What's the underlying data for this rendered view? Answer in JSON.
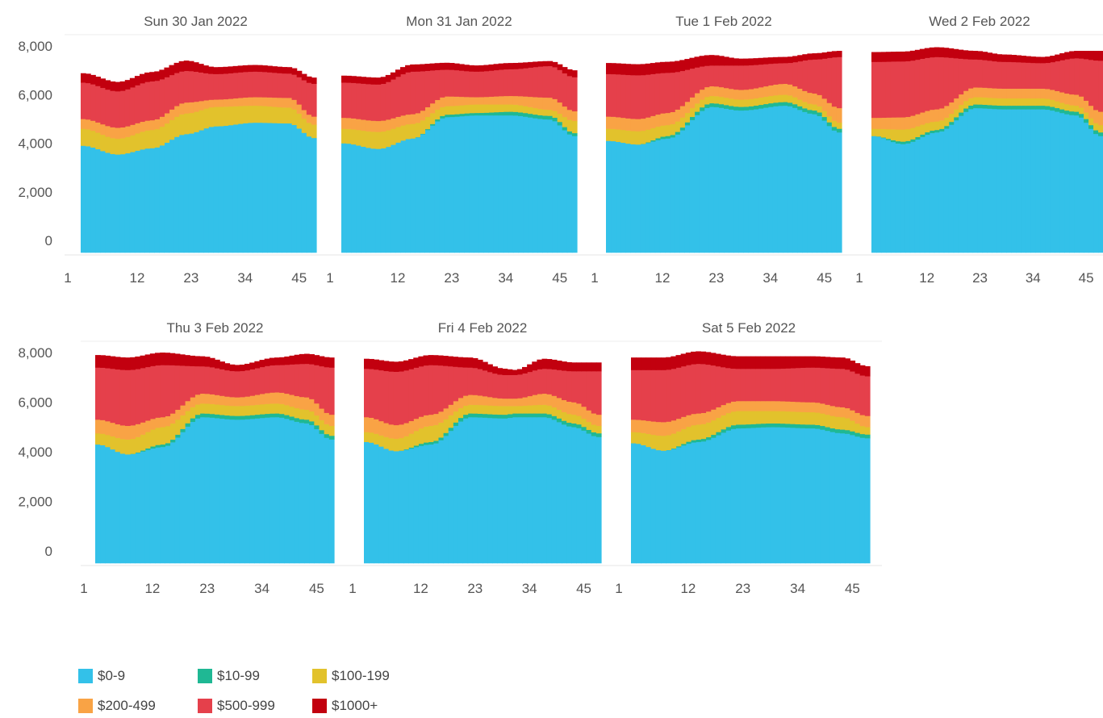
{
  "chart_data": {
    "type": "area",
    "stacked": true,
    "x": [
      1,
      2,
      3,
      4,
      5,
      6,
      7,
      8,
      9,
      10,
      11,
      12,
      13,
      14,
      15,
      16,
      17,
      18,
      19,
      20,
      21,
      22,
      23,
      24,
      25,
      26,
      27,
      28,
      29,
      30,
      31,
      32,
      33,
      34,
      35,
      36,
      37,
      38,
      39,
      40,
      41,
      42,
      43,
      44,
      45,
      46,
      47,
      48
    ],
    "xticks": [
      1,
      12,
      23,
      34,
      45
    ],
    "yticks": [
      "0",
      "2,000",
      "4,000",
      "6,000",
      "8,000"
    ],
    "ylim": [
      0,
      8000
    ],
    "grid": false,
    "legend_position": "bottom-left",
    "categories": [
      "$0-9",
      "$10-99",
      "$100-199",
      "$200-499",
      "$500-999",
      "$1000+"
    ],
    "colors": [
      "#33c1e9",
      "#1fb894",
      "#e2c22c",
      "#f9a345",
      "#e5404b",
      "#c2000f"
    ],
    "panels": [
      {
        "title": "Sun 30 Jan 2022",
        "keys": [
          [
            1,
            3900,
            0,
            700,
            400,
            1500,
            380
          ],
          [
            8,
            3540,
            0,
            650,
            450,
            1500,
            380
          ],
          [
            15,
            3800,
            0,
            750,
            400,
            1600,
            380
          ],
          [
            22,
            4380,
            0,
            850,
            450,
            1300,
            420
          ],
          [
            28,
            4700,
            0,
            800,
            300,
            1050,
            280
          ],
          [
            36,
            4850,
            0,
            700,
            350,
            1050,
            270
          ],
          [
            43,
            4820,
            0,
            650,
            400,
            1000,
            260
          ],
          [
            48,
            4220,
            0,
            550,
            330,
            1350,
            250
          ]
        ]
      },
      {
        "title": "Mon 31 Jan 2022",
        "keys": [
          [
            1,
            4000,
            0,
            600,
            450,
            1450,
            280
          ],
          [
            8,
            3770,
            0,
            700,
            450,
            1500,
            280
          ],
          [
            15,
            4200,
            0,
            600,
            400,
            1750,
            290
          ],
          [
            22,
            5080,
            100,
            350,
            400,
            1100,
            280
          ],
          [
            28,
            5150,
            100,
            350,
            300,
            1050,
            250
          ],
          [
            35,
            5150,
            150,
            300,
            350,
            1100,
            250
          ],
          [
            43,
            4980,
            150,
            250,
            500,
            1300,
            200
          ],
          [
            48,
            4300,
            120,
            500,
            400,
            1400,
            280
          ]
        ]
      },
      {
        "title": "Tue 1 Feb 2022",
        "keys": [
          [
            1,
            4100,
            0,
            500,
            500,
            1750,
            450
          ],
          [
            7,
            3950,
            0,
            550,
            500,
            1800,
            450
          ],
          [
            13,
            4200,
            100,
            450,
            500,
            1650,
            450
          ],
          [
            22,
            5500,
            150,
            300,
            400,
            850,
            430
          ],
          [
            28,
            5350,
            150,
            300,
            400,
            1000,
            280
          ],
          [
            37,
            5550,
            150,
            300,
            450,
            850,
            250
          ],
          [
            43,
            5200,
            150,
            250,
            450,
            1400,
            250
          ],
          [
            48,
            4450,
            150,
            250,
            600,
            2100,
            250
          ]
        ]
      },
      {
        "title": "Wed 2 Feb 2022",
        "keys": [
          [
            1,
            4300,
            0,
            300,
            450,
            2300,
            400
          ],
          [
            7,
            3970,
            100,
            500,
            500,
            2300,
            400
          ],
          [
            14,
            4450,
            100,
            350,
            500,
            2150,
            400
          ],
          [
            22,
            5450,
            150,
            300,
            400,
            1150,
            350
          ],
          [
            28,
            5400,
            150,
            300,
            400,
            1100,
            300
          ],
          [
            36,
            5400,
            150,
            300,
            400,
            1050,
            250
          ],
          [
            43,
            5150,
            150,
            250,
            450,
            1500,
            300
          ],
          [
            48,
            4300,
            150,
            300,
            550,
            2100,
            400
          ]
        ]
      },
      {
        "title": "Thu 3 Feb 2022",
        "keys": [
          [
            1,
            4300,
            0,
            450,
            550,
            2100,
            500
          ],
          [
            7,
            3900,
            0,
            600,
            550,
            2250,
            500
          ],
          [
            14,
            4200,
            100,
            700,
            400,
            2100,
            500
          ],
          [
            22,
            5400,
            150,
            400,
            400,
            1100,
            400
          ],
          [
            29,
            5300,
            150,
            400,
            350,
            1050,
            250
          ],
          [
            37,
            5400,
            150,
            400,
            450,
            1100,
            300
          ],
          [
            43,
            5150,
            150,
            400,
            500,
            1350,
            400
          ],
          [
            48,
            4500,
            150,
            400,
            450,
            1900,
            400
          ]
        ]
      },
      {
        "title": "Fri 4 Feb 2022",
        "keys": [
          [
            1,
            4400,
            0,
            400,
            600,
            1950,
            400
          ],
          [
            7,
            4030,
            0,
            500,
            550,
            2150,
            400
          ],
          [
            14,
            4300,
            100,
            650,
            450,
            2000,
            400
          ],
          [
            22,
            5400,
            150,
            350,
            400,
            1100,
            400
          ],
          [
            29,
            5350,
            150,
            350,
            300,
            950,
            250
          ],
          [
            31,
            5400,
            150,
            300,
            300,
            950,
            200
          ],
          [
            37,
            5400,
            150,
            350,
            450,
            1000,
            400
          ],
          [
            43,
            5000,
            150,
            350,
            500,
            1250,
            350
          ],
          [
            48,
            4600,
            150,
            300,
            450,
            1750,
            350
          ]
        ]
      },
      {
        "title": "Sat 5 Feb 2022",
        "keys": [
          [
            1,
            4350,
            0,
            450,
            500,
            2000,
            500
          ],
          [
            7,
            4050,
            0,
            600,
            550,
            2100,
            500
          ],
          [
            14,
            4400,
            100,
            600,
            450,
            2000,
            500
          ],
          [
            22,
            4950,
            150,
            550,
            400,
            1300,
            500
          ],
          [
            29,
            5000,
            150,
            500,
            400,
            1300,
            500
          ],
          [
            37,
            4950,
            150,
            500,
            400,
            1400,
            450
          ],
          [
            43,
            4750,
            150,
            500,
            400,
            1550,
            450
          ],
          [
            48,
            4550,
            150,
            300,
            450,
            1600,
            400
          ]
        ]
      }
    ]
  }
}
